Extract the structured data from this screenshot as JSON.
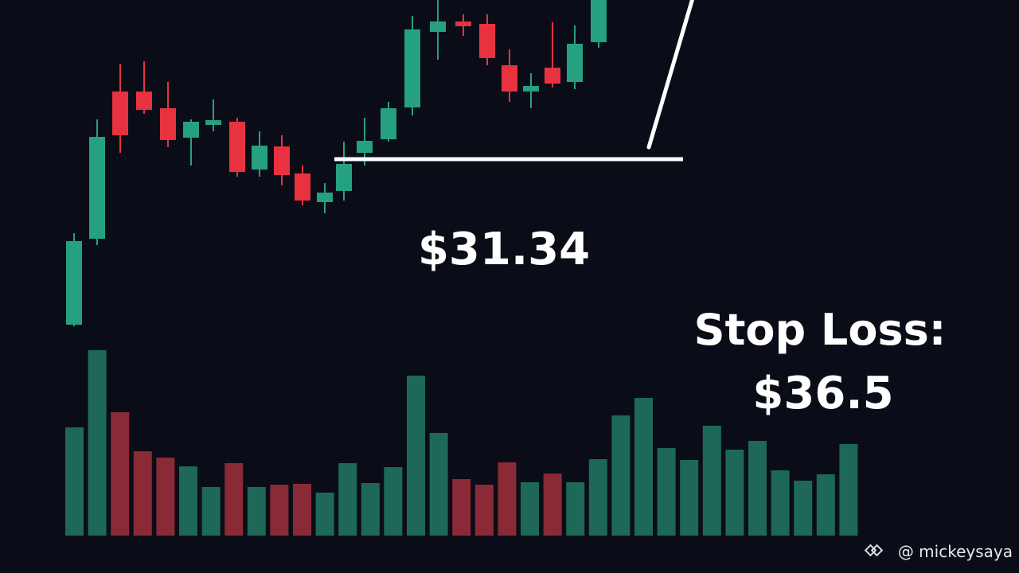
{
  "price_label": "$31.34",
  "stop_loss": {
    "label": "Stop Loss:",
    "value": "$36.5"
  },
  "watermark": "@ mickeysaya"
}
